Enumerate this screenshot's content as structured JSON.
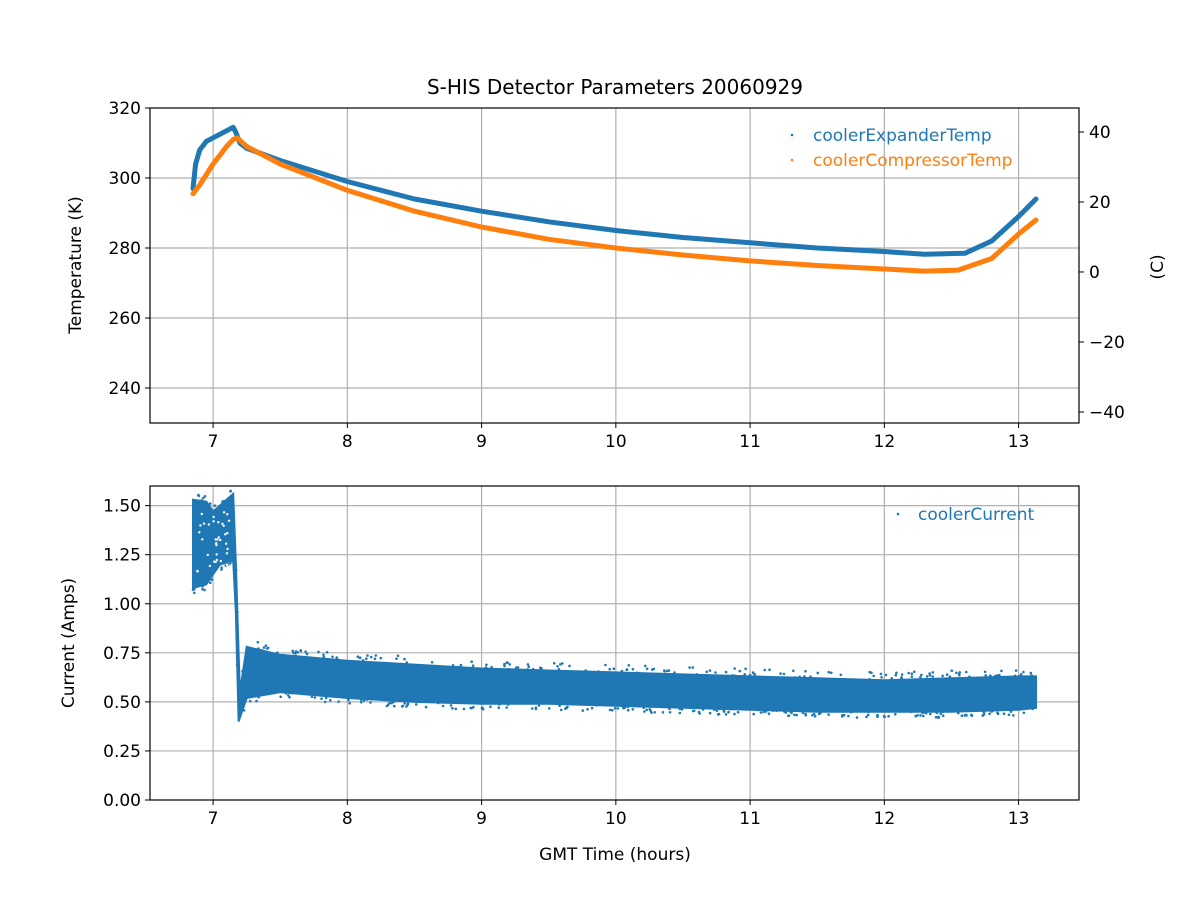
{
  "chart_data": [
    {
      "type": "line",
      "title": "S-HIS Detector Parameters 20060929",
      "xlabel": "",
      "ylabel": "Temperature (K)",
      "y2label": "(C)",
      "xlim": [
        6.53,
        13.45
      ],
      "ylim": [
        230,
        320
      ],
      "y2lim": [
        -43.15,
        46.85
      ],
      "xticks": [
        "7",
        "8",
        "9",
        "10",
        "11",
        "12",
        "13"
      ],
      "yticks": [
        "240",
        "260",
        "280",
        "300",
        "320"
      ],
      "y2ticks": [
        "−40",
        "−20",
        "0",
        "20",
        "40"
      ],
      "grid": true,
      "legend": "top-right",
      "series": [
        {
          "name": "coolerExpanderTemp",
          "color": "#1f77b4",
          "x": [
            6.85,
            6.87,
            6.9,
            6.95,
            7.0,
            7.05,
            7.1,
            7.15,
            7.17,
            7.2,
            7.25,
            7.5,
            8.0,
            8.5,
            9.0,
            9.5,
            10.0,
            10.5,
            11.0,
            11.5,
            12.0,
            12.3,
            12.6,
            12.8,
            13.0,
            13.13
          ],
          "y": [
            297,
            304,
            308,
            310.5,
            311.5,
            312.5,
            313.5,
            314.5,
            313,
            310,
            308.5,
            305,
            299,
            294,
            290.5,
            287.5,
            285,
            283,
            281.5,
            280,
            279,
            278.2,
            278.5,
            282,
            289,
            294
          ]
        },
        {
          "name": "coolerCompressorTemp",
          "color": "#ff7f0e",
          "x": [
            6.85,
            6.9,
            6.95,
            7.0,
            7.05,
            7.1,
            7.15,
            7.18,
            7.25,
            7.5,
            8.0,
            8.5,
            9.0,
            9.5,
            10.0,
            10.5,
            11.0,
            11.5,
            12.0,
            12.3,
            12.55,
            12.8,
            13.0,
            13.13
          ],
          "y": [
            295.5,
            298,
            301,
            304,
            306.5,
            309,
            311,
            311.5,
            309,
            304,
            296.5,
            290.5,
            286,
            282.5,
            280,
            278,
            276.3,
            275,
            274,
            273.4,
            273.7,
            277,
            284,
            288
          ]
        }
      ]
    },
    {
      "type": "scatter",
      "title": "",
      "xlabel": "GMT Time (hours)",
      "ylabel": "Current (Amps)",
      "xlim": [
        6.53,
        13.45
      ],
      "ylim": [
        0,
        1.6
      ],
      "xticks": [
        "7",
        "8",
        "9",
        "10",
        "11",
        "12",
        "13"
      ],
      "yticks": [
        "0.00",
        "0.25",
        "0.50",
        "0.75",
        "1.00",
        "1.25",
        "1.50"
      ],
      "grid": true,
      "legend": "top-right",
      "series": [
        {
          "name": "coolerCurrent",
          "color": "#1f77b4",
          "envelope": {
            "x": [
              6.85,
              6.95,
              7.0,
              7.05,
              7.15,
              7.17,
              7.19,
              7.2,
              7.25,
              7.5,
              8.0,
              8.5,
              9.0,
              9.5,
              10.0,
              10.5,
              11.0,
              11.5,
              12.0,
              12.5,
              13.0,
              13.13
            ],
            "upper": [
              1.53,
              1.52,
              1.47,
              1.5,
              1.56,
              1.2,
              0.75,
              0.55,
              0.78,
              0.74,
              0.71,
              0.69,
              0.67,
              0.66,
              0.65,
              0.64,
              0.63,
              0.62,
              0.61,
              0.62,
              0.63,
              0.63
            ],
            "lower": [
              1.08,
              1.1,
              1.15,
              1.2,
              1.22,
              0.95,
              0.4,
              0.42,
              0.52,
              0.55,
              0.52,
              0.5,
              0.49,
              0.49,
              0.48,
              0.47,
              0.46,
              0.45,
              0.45,
              0.45,
              0.46,
              0.47
            ]
          }
        }
      ]
    }
  ]
}
